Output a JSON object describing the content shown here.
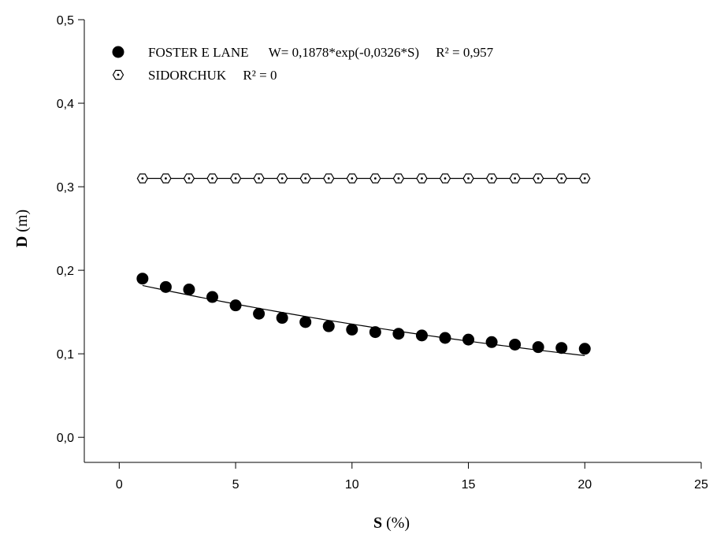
{
  "chart_data": {
    "type": "scatter",
    "xlabel_symbol": "S",
    "xlabel_unit": "(%)",
    "ylabel_symbol": "D",
    "ylabel_unit": "(m)",
    "xlim": [
      -1.5,
      25
    ],
    "ylim": [
      -0.03,
      0.5
    ],
    "xticks": [
      0,
      5,
      10,
      15,
      20,
      25
    ],
    "xtick_labels": [
      "0",
      "5",
      "10",
      "15",
      "20",
      "25"
    ],
    "yticks": [
      0.0,
      0.1,
      0.2,
      0.3,
      0.4,
      0.5
    ],
    "ytick_labels": [
      "0,0",
      "0,1",
      "0,2",
      "0,3",
      "0,4",
      "0,5"
    ],
    "grid": false,
    "legend_position": "top-left",
    "series": [
      {
        "name": "FOSTER E LANE",
        "legend_text": "FOSTER E LANE      W= 0,1878*exp(-0,0326*S)     R² = 0,957",
        "marker": "filled-circle",
        "color": "#000000",
        "x": [
          1,
          2,
          3,
          4,
          5,
          6,
          7,
          8,
          9,
          10,
          11,
          12,
          13,
          14,
          15,
          16,
          17,
          18,
          19,
          20
        ],
        "y": [
          0.19,
          0.18,
          0.177,
          0.168,
          0.158,
          0.148,
          0.143,
          0.138,
          0.133,
          0.129,
          0.126,
          0.124,
          0.122,
          0.119,
          0.117,
          0.114,
          0.111,
          0.108,
          0.107,
          0.106
        ],
        "fit": {
          "a": 0.1878,
          "b": -0.0326,
          "x_range": [
            1,
            20
          ]
        }
      },
      {
        "name": "SIDORCHUK",
        "legend_text": "SIDORCHUK     R² = 0",
        "marker": "hollow-hexagon",
        "color": "#000000",
        "x": [
          1,
          2,
          3,
          4,
          5,
          6,
          7,
          8,
          9,
          10,
          11,
          12,
          13,
          14,
          15,
          16,
          17,
          18,
          19,
          20
        ],
        "y": [
          0.31,
          0.31,
          0.31,
          0.31,
          0.31,
          0.31,
          0.31,
          0.31,
          0.31,
          0.31,
          0.31,
          0.31,
          0.31,
          0.31,
          0.31,
          0.31,
          0.31,
          0.31,
          0.31,
          0.31
        ],
        "fit": {
          "value": 0.31,
          "x_range": [
            1,
            20
          ]
        }
      }
    ]
  }
}
